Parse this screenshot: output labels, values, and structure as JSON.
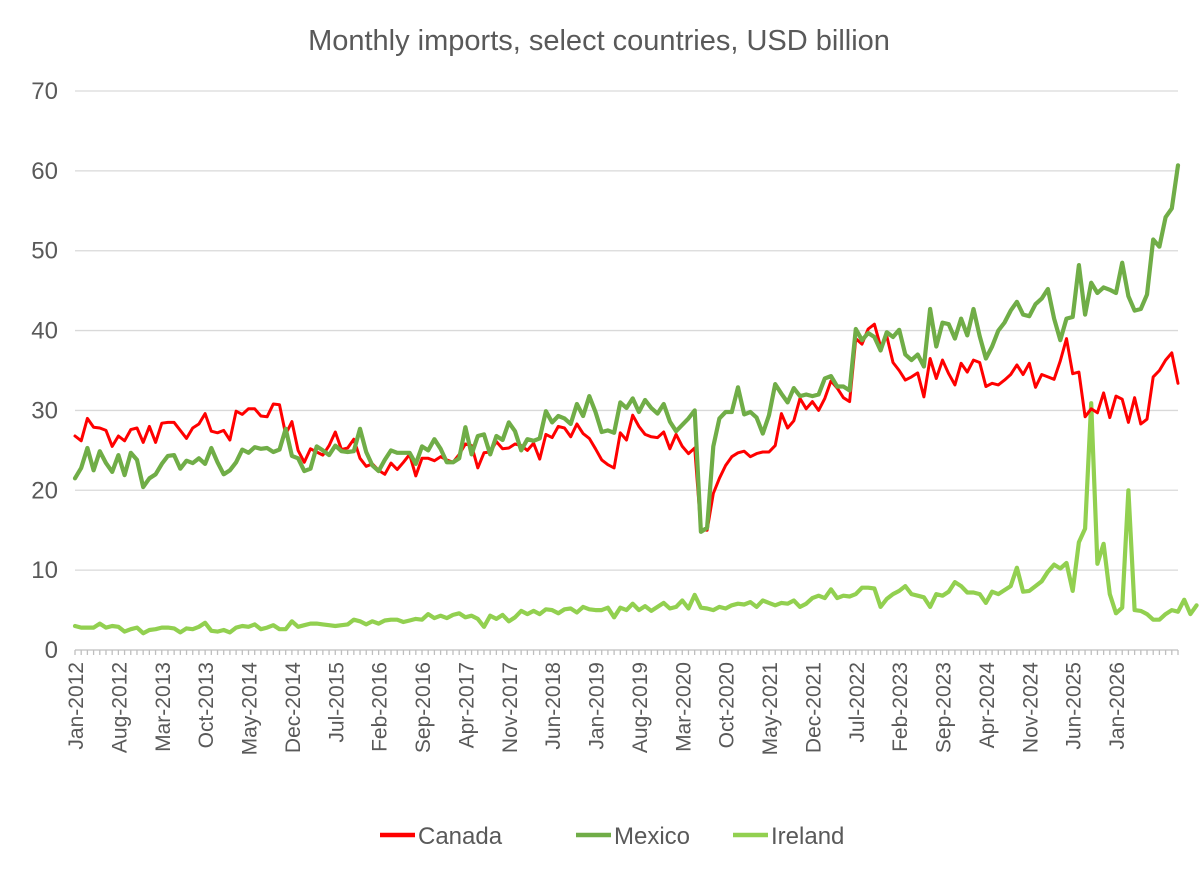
{
  "chart_data": {
    "type": "line",
    "title": "Monthly imports, select countries, USD billion",
    "ylim": [
      0,
      70
    ],
    "yticks": [
      "0",
      "10",
      "20",
      "30",
      "40",
      "50",
      "60",
      "70"
    ],
    "x_start": "Jan-2012",
    "x_end": "Dec-2026",
    "xticks": [
      "Jan-2012",
      "Aug-2012",
      "Mar-2013",
      "Oct-2013",
      "May-2014",
      "Dec-2014",
      "Jul-2015",
      "Feb-2016",
      "Sep-2016",
      "Apr-2017",
      "Nov-2017",
      "Jun-2018",
      "Jan-2019",
      "Aug-2019",
      "Mar-2020",
      "Oct-2020",
      "May-2021",
      "Dec-2021",
      "Jul-2022",
      "Feb-2023",
      "Sep-2023",
      "Apr-2024",
      "Nov-2024",
      "Jun-2025",
      "Jan-2026"
    ],
    "grid": true,
    "legend_position": "bottom",
    "series": [
      {
        "name": "Canada",
        "color": "#ff0000",
        "values": [
          26.8,
          26.2,
          29.0,
          27.9,
          27.8,
          27.5,
          25.5,
          26.8,
          26.2,
          27.6,
          27.8,
          26.0,
          28.0,
          26.0,
          28.4,
          28.5,
          28.5,
          27.5,
          26.5,
          27.8,
          28.3,
          29.6,
          27.4,
          27.2,
          27.5,
          26.3,
          29.9,
          29.5,
          30.2,
          30.2,
          29.3,
          29.2,
          30.8,
          30.7,
          27.0,
          28.6,
          25.0,
          23.5,
          25.2,
          24.8,
          24.4,
          25.6,
          27.3,
          25.1,
          25.3,
          26.4,
          24.0,
          23.0,
          23.3,
          22.5,
          22.0,
          23.4,
          22.6,
          23.5,
          24.5,
          21.8,
          24.0,
          24.0,
          23.7,
          24.2,
          23.8,
          23.5,
          24.5,
          25.8,
          25.6,
          22.8,
          24.7,
          24.8,
          26.1,
          25.2,
          25.3,
          25.8,
          25.6,
          25.0,
          25.9,
          23.9,
          27.0,
          26.6,
          28.0,
          27.8,
          26.7,
          28.3,
          27.1,
          26.5,
          25.2,
          23.8,
          23.2,
          22.8,
          27.2,
          26.3,
          29.4,
          28.0,
          27.0,
          26.7,
          26.6,
          27.3,
          25.2,
          27.0,
          25.5,
          24.6,
          25.3,
          15.1,
          15.0,
          19.6,
          21.5,
          23.1,
          24.2,
          24.7,
          24.9,
          24.2,
          24.6,
          24.8,
          24.8,
          25.6,
          29.6,
          27.8,
          28.7,
          31.5,
          30.2,
          31.1,
          30.0,
          31.5,
          33.7,
          32.8,
          31.6,
          31.1,
          39.0,
          38.3,
          40.2,
          40.8,
          38.0,
          39.3,
          36.0,
          35.0,
          33.8,
          34.2,
          34.7,
          31.7,
          36.5,
          34.0,
          36.3,
          34.6,
          33.2,
          35.9,
          34.8,
          36.3,
          36.0,
          33.0,
          33.4,
          33.2,
          33.8,
          34.5,
          35.7,
          34.5,
          35.9,
          32.9,
          34.5,
          34.2,
          33.9,
          36.2,
          39.0,
          34.6,
          34.8,
          29.2,
          30.2,
          29.7,
          32.2,
          29.1,
          31.8,
          31.4,
          28.5,
          31.6,
          28.3,
          28.9,
          34.2,
          35.0,
          36.3,
          37.2,
          33.4
        ]
      },
      {
        "name": "Mexico",
        "color": "#70ad47",
        "values": [
          21.5,
          22.8,
          25.3,
          22.5,
          24.9,
          23.4,
          22.3,
          24.4,
          21.9,
          24.7,
          23.8,
          20.4,
          21.5,
          22.0,
          23.3,
          24.3,
          24.4,
          22.7,
          23.7,
          23.4,
          24.0,
          23.3,
          25.3,
          23.5,
          22.0,
          22.5,
          23.5,
          25.1,
          24.7,
          25.4,
          25.2,
          25.3,
          24.8,
          25.1,
          27.7,
          24.3,
          24.0,
          22.4,
          22.7,
          25.5,
          25.0,
          24.4,
          25.6,
          24.9,
          24.8,
          24.9,
          27.7,
          24.8,
          23.1,
          22.4,
          23.8,
          25.0,
          24.7,
          24.7,
          24.7,
          23.3,
          25.5,
          25.0,
          26.4,
          25.2,
          23.5,
          23.5,
          24.0,
          27.9,
          24.5,
          26.8,
          27.0,
          24.5,
          26.8,
          26.3,
          28.5,
          27.4,
          25.0,
          26.4,
          26.2,
          26.5,
          29.9,
          28.5,
          29.3,
          29.0,
          28.3,
          30.8,
          29.3,
          31.8,
          29.8,
          27.3,
          27.5,
          27.2,
          31.0,
          30.3,
          31.5,
          29.8,
          31.3,
          30.3,
          29.6,
          30.8,
          28.6,
          27.4,
          28.2,
          29.0,
          30.0,
          14.8,
          15.3,
          25.5,
          29.0,
          29.8,
          29.8,
          32.9,
          29.5,
          29.8,
          29.1,
          27.1,
          29.4,
          33.3,
          32.1,
          31.0,
          32.8,
          31.8,
          32.0,
          31.8,
          32.0,
          34.0,
          34.3,
          33.0,
          33.0,
          32.5,
          40.2,
          38.8,
          39.7,
          39.2,
          37.5,
          39.8,
          39.2,
          40.1,
          37.0,
          36.3,
          37.0,
          35.5,
          42.7,
          38.0,
          41.0,
          40.8,
          39.0,
          41.5,
          39.4,
          42.7,
          39.3,
          36.5,
          38.0,
          40.0,
          41.0,
          42.5,
          43.6,
          42.0,
          41.8,
          43.3,
          44.0,
          45.2,
          41.5,
          38.8,
          41.5,
          41.7,
          48.2,
          42.0,
          46.0,
          44.7,
          45.4,
          45.1,
          44.7,
          48.5,
          44.3,
          42.5,
          42.7,
          44.5,
          51.4,
          50.5,
          54.2,
          55.3,
          60.7
        ]
      },
      {
        "name": "Ireland",
        "color": "#92d050",
        "values": [
          3.0,
          2.8,
          2.8,
          2.8,
          3.3,
          2.8,
          3.0,
          2.9,
          2.3,
          2.6,
          2.8,
          2.1,
          2.5,
          2.6,
          2.8,
          2.8,
          2.7,
          2.2,
          2.7,
          2.6,
          2.9,
          3.4,
          2.4,
          2.3,
          2.5,
          2.2,
          2.8,
          3.0,
          2.9,
          3.2,
          2.6,
          2.8,
          3.1,
          2.6,
          2.6,
          3.6,
          2.9,
          3.1,
          3.3,
          3.3,
          3.2,
          3.1,
          3.0,
          3.1,
          3.2,
          3.8,
          3.6,
          3.2,
          3.6,
          3.3,
          3.7,
          3.8,
          3.8,
          3.5,
          3.7,
          3.9,
          3.8,
          4.5,
          4.0,
          4.3,
          4.0,
          4.4,
          4.6,
          4.1,
          4.3,
          3.9,
          2.9,
          4.3,
          3.9,
          4.4,
          3.6,
          4.1,
          4.9,
          4.5,
          4.9,
          4.5,
          5.1,
          5.0,
          4.6,
          5.1,
          5.2,
          4.7,
          5.4,
          5.1,
          5.0,
          5.0,
          5.3,
          4.1,
          5.3,
          5.0,
          5.8,
          5.0,
          5.5,
          4.9,
          5.4,
          5.9,
          5.2,
          5.4,
          6.2,
          5.2,
          6.9,
          5.3,
          5.2,
          5.0,
          5.4,
          5.2,
          5.6,
          5.8,
          5.7,
          6.0,
          5.4,
          6.2,
          5.9,
          5.6,
          5.9,
          5.8,
          6.2,
          5.4,
          5.8,
          6.5,
          6.8,
          6.5,
          7.6,
          6.5,
          6.8,
          6.7,
          7.0,
          7.8,
          7.8,
          7.7,
          5.4,
          6.4,
          7.0,
          7.4,
          8.0,
          7.0,
          6.8,
          6.6,
          5.4,
          7.0,
          6.8,
          7.3,
          8.5,
          8.0,
          7.2,
          7.2,
          7.0,
          5.9,
          7.3,
          7.0,
          7.5,
          8.0,
          10.3,
          7.3,
          7.4,
          8.0,
          8.6,
          9.8,
          10.7,
          10.2,
          10.9,
          7.4,
          13.5,
          15.2,
          30.9,
          10.8,
          13.3,
          7.0,
          4.6,
          5.3,
          20.0,
          5.0,
          4.9,
          4.5,
          3.8,
          3.8,
          4.5,
          5.0,
          4.8,
          6.3,
          4.5,
          5.6
        ]
      }
    ]
  }
}
